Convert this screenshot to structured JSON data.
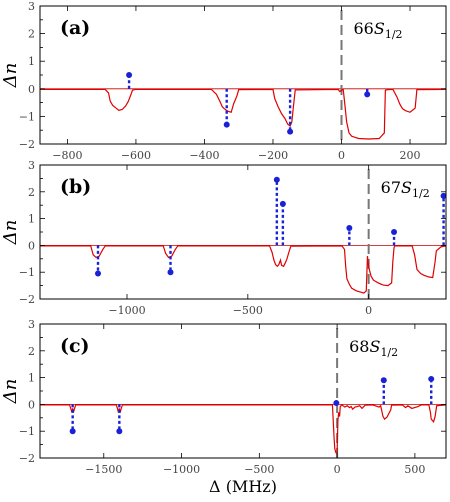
{
  "x_axis_label": "Δ (MHz)",
  "chart_data": [
    {
      "type": "line",
      "panel_label": "(a)",
      "state_label": "66S1/2",
      "ylabel": "Δn",
      "xlim": [
        -880,
        305
      ],
      "ylim": [
        -2,
        3
      ],
      "xticks": [
        -800,
        -600,
        -400,
        -200,
        0,
        200
      ],
      "yticks": [
        -2,
        -1,
        0,
        1,
        2,
        3
      ],
      "resonance_marker_x": 0,
      "series": [
        {
          "kind": "simulation",
          "color": "#e00000",
          "x": [
            -880,
            -690,
            -680,
            -675,
            -668,
            -660,
            -650,
            -640,
            -630,
            -622,
            -615,
            -610,
            -600,
            -380,
            -365,
            -355,
            -348,
            -342,
            -336,
            -330,
            -322,
            -315,
            -305,
            -300,
            -200,
            -195,
            -185,
            -175,
            -165,
            -157,
            -150,
            -145,
            -140,
            -135,
            -10,
            -5,
            0,
            5,
            10,
            15,
            22,
            30,
            50,
            80,
            110,
            125,
            128,
            135,
            150,
            162,
            170,
            178,
            188,
            200,
            215,
            220,
            305
          ],
          "y": [
            -0.02,
            -0.02,
            -0.15,
            -0.45,
            -0.6,
            -0.68,
            -0.78,
            -0.75,
            -0.62,
            -0.45,
            -0.22,
            -0.05,
            -0.02,
            -0.02,
            -0.2,
            -0.45,
            -0.65,
            -0.72,
            -0.78,
            -0.82,
            -0.85,
            -0.55,
            -0.25,
            -0.03,
            -0.02,
            -0.35,
            -0.65,
            -0.9,
            -1.08,
            -1.28,
            -1.35,
            -1.2,
            -0.6,
            -0.04,
            -0.02,
            -0.1,
            -0.05,
            -0.02,
            -0.6,
            -1.2,
            -1.6,
            -1.72,
            -1.8,
            -1.82,
            -1.8,
            -1.6,
            -0.05,
            -0.03,
            -0.02,
            -0.3,
            -0.55,
            -0.72,
            -0.8,
            -0.85,
            -0.7,
            -0.03,
            -0.02
          ]
        },
        {
          "kind": "stems",
          "color": "#1a22d6",
          "x": [
            -620,
            -335,
            -150,
            75
          ],
          "y": [
            0.5,
            -1.3,
            -1.55,
            -0.2
          ]
        }
      ]
    },
    {
      "type": "line",
      "panel_label": "(b)",
      "state_label": "67S1/2",
      "ylabel": "Δn",
      "xlim": [
        -1360,
        320
      ],
      "ylim": [
        -2,
        3
      ],
      "xticks": [
        -1000,
        -500,
        0
      ],
      "yticks": [
        -2,
        -1,
        0,
        1,
        2,
        3
      ],
      "resonance_marker_x": 0,
      "series": [
        {
          "kind": "simulation",
          "color": "#e00000",
          "x": [
            -1360,
            -1150,
            -1140,
            -1128,
            -1115,
            -1100,
            -1090,
            -850,
            -840,
            -828,
            -815,
            -800,
            -790,
            -410,
            -400,
            -392,
            -385,
            -378,
            -372,
            -365,
            -360,
            -352,
            -345,
            -338,
            -330,
            -322,
            -110,
            -100,
            -95,
            -90,
            -80,
            -70,
            -50,
            -30,
            -20,
            -10,
            -5,
            0,
            10,
            20,
            40,
            60,
            80,
            95,
            100,
            105,
            108,
            180,
            190,
            200,
            215,
            230,
            250,
            265,
            275,
            280,
            300,
            320
          ],
          "y": [
            -0.02,
            -0.02,
            -0.35,
            -0.45,
            -0.4,
            -0.15,
            -0.02,
            -0.02,
            -0.3,
            -0.45,
            -0.4,
            -0.15,
            -0.02,
            -0.02,
            -0.25,
            -0.55,
            -0.72,
            -0.78,
            -0.72,
            -0.55,
            -0.75,
            -0.78,
            -0.65,
            -0.5,
            -0.25,
            -0.03,
            -0.02,
            -0.15,
            -0.8,
            -1.25,
            -1.45,
            -1.6,
            -1.7,
            -1.75,
            -1.78,
            -1.7,
            -0.4,
            -0.8,
            -1.15,
            -1.3,
            -1.4,
            -1.48,
            -1.5,
            -1.4,
            -0.6,
            -0.08,
            -0.02,
            -0.02,
            -0.35,
            -0.9,
            -1.05,
            -1.12,
            -1.18,
            -1.2,
            -0.6,
            -0.2,
            -0.05,
            -0.02
          ]
        },
        {
          "kind": "stems",
          "color": "#1a22d6",
          "x": [
            -1120,
            -820,
            -380,
            -355,
            -80,
            105,
            310
          ],
          "y": [
            -1.05,
            -1.0,
            2.45,
            1.55,
            0.65,
            0.5,
            1.85
          ]
        }
      ]
    },
    {
      "type": "line",
      "panel_label": "(c)",
      "state_label": "68S1/2",
      "ylabel": "Δn",
      "xlim": [
        -1910,
        700
      ],
      "ylim": [
        -2,
        3
      ],
      "xticks": [
        -1500,
        -1000,
        -500,
        0,
        500
      ],
      "yticks": [
        -2,
        -1,
        0,
        1,
        2,
        3
      ],
      "resonance_marker_x": 0,
      "series": [
        {
          "kind": "simulation",
          "color": "#e00000",
          "x": [
            -1910,
            -1720,
            -1712,
            -1705,
            -1700,
            -1695,
            -1688,
            -1680,
            -1420,
            -1412,
            -1406,
            -1400,
            -1394,
            -1388,
            -1380,
            -30,
            -25,
            -20,
            -15,
            -8,
            0,
            5,
            10,
            16,
            20,
            30,
            50,
            65,
            80,
            90,
            100,
            115,
            130,
            145,
            160,
            180,
            230,
            270,
            280,
            295,
            305,
            320,
            345,
            350,
            420,
            440,
            455,
            480,
            520,
            540,
            590,
            600,
            605,
            620,
            630,
            640,
            700
          ],
          "y": [
            -0.02,
            -0.02,
            -0.15,
            -0.3,
            -0.15,
            -0.3,
            -0.15,
            -0.02,
            -0.02,
            -0.15,
            -0.3,
            -0.15,
            -0.3,
            -0.15,
            -0.02,
            -0.02,
            -0.6,
            -1.2,
            -1.65,
            -1.8,
            -1.8,
            -0.6,
            -0.3,
            -0.45,
            -0.08,
            -0.02,
            -0.1,
            -0.05,
            -0.12,
            -0.08,
            -0.18,
            -0.1,
            -0.08,
            -0.05,
            -0.15,
            -0.03,
            -0.02,
            -0.1,
            -0.05,
            -0.45,
            -0.55,
            -0.48,
            -0.2,
            -0.03,
            -0.02,
            -0.12,
            -0.05,
            -0.15,
            -0.08,
            -0.02,
            -0.02,
            -0.3,
            -0.55,
            -0.65,
            -0.45,
            -0.05,
            -0.02
          ]
        },
        {
          "kind": "stems",
          "color": "#1a22d6",
          "x": [
            -1700,
            -1400,
            -5,
            300,
            605
          ],
          "y": [
            -1.0,
            -1.0,
            0.05,
            0.9,
            0.95
          ]
        }
      ]
    }
  ]
}
